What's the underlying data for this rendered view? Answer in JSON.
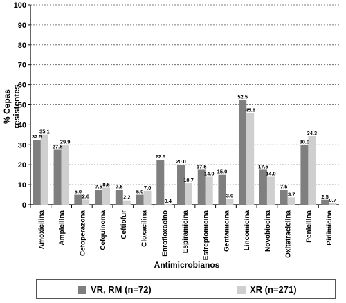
{
  "chart_data": {
    "type": "bar",
    "title": "",
    "xlabel": "Antimicrobianos",
    "ylabel": "% Cepas resistentes",
    "ylim": [
      0,
      100
    ],
    "yticks": [
      0,
      10,
      20,
      30,
      40,
      50,
      60,
      70,
      80,
      90,
      100
    ],
    "grid": "horizontal-dashed",
    "legend_position": "bottom",
    "categories": [
      "Amoxicilina",
      "Ampicilina",
      "Cefoperazona",
      "Cefquinoma",
      "Ceftiofur",
      "Cloxacilina",
      "Enrofloxacino",
      "Espiramicina",
      "Estreptomicina",
      "Gentamicina",
      "Lincomicina",
      "Novobiocina",
      "Oxitetraciclina",
      "Penicilina",
      "Pirlimicina"
    ],
    "series": [
      {
        "name": "VR, RM (n=72)",
        "color": "#7f7f7f",
        "values": [
          32.5,
          27.5,
          5.0,
          7.5,
          7.5,
          5.0,
          22.5,
          20.0,
          17.5,
          15.0,
          52.5,
          17.5,
          7.5,
          30.0,
          2.5
        ],
        "labels": [
          "32.5",
          "27.5",
          "5.0",
          "7.5",
          "7.5",
          "5.0",
          "22.5",
          "20.0",
          "17.5",
          "15.0",
          "52.5",
          "17.5",
          "7.5",
          "30.0",
          "2.5"
        ]
      },
      {
        "name": "XR (n=271)",
        "color": "#cfcfcf",
        "values": [
          35.1,
          29.9,
          2.6,
          8.5,
          2.2,
          7.0,
          0.4,
          10.7,
          14.0,
          3.0,
          45.8,
          14.0,
          3.7,
          34.3,
          0.7
        ],
        "labels": [
          "35.1",
          "29.9",
          "2.6",
          "8.5",
          "2.2",
          "7.0",
          "0.4",
          "10.7",
          "14.0",
          "3.0",
          "45.8",
          "14.0",
          "3.7",
          "34.3",
          "0.7"
        ]
      }
    ]
  }
}
